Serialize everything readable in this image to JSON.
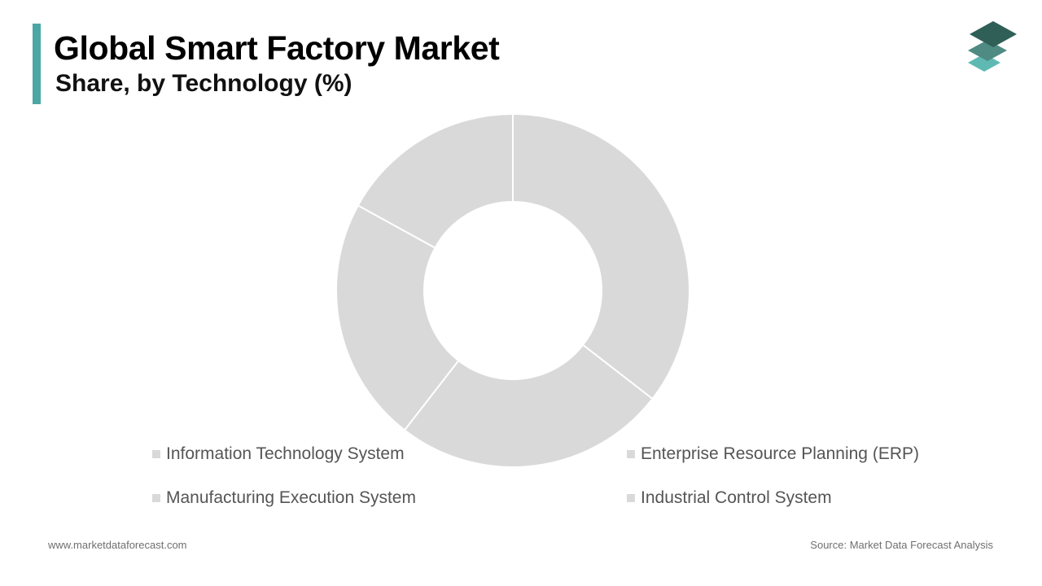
{
  "header": {
    "title": "Global Smart Factory Market",
    "subtitle": "Share, by Technology (%)"
  },
  "logo": {
    "icon": "stacked-layers-icon",
    "colors": [
      "#2f5f57",
      "#4f8b83",
      "#5fb9b3"
    ]
  },
  "colors": {
    "accent": "#4aa7a5",
    "slice": "#d9d9d9",
    "separator": "#ffffff",
    "legend_text": "#555555"
  },
  "chart_data": {
    "type": "pie",
    "donut": true,
    "categories": [
      "Information Technology System",
      "Enterprise Resource Planning (ERP)",
      "Manufacturing Execution System",
      "Industrial Control System"
    ],
    "slices": [
      {
        "label": "Enterprise Resource Planning (ERP)",
        "value": 35.5
      },
      {
        "label": "Industrial Control System",
        "value": 25.0
      },
      {
        "label": "Manufacturing Execution System",
        "value": 22.5
      },
      {
        "label": "Information Technology System",
        "value": 17.0
      }
    ],
    "legend_position": "bottom"
  },
  "footer": {
    "website": "www.marketdataforecast.com",
    "source": "Source: Market Data Forecast Analysis"
  }
}
